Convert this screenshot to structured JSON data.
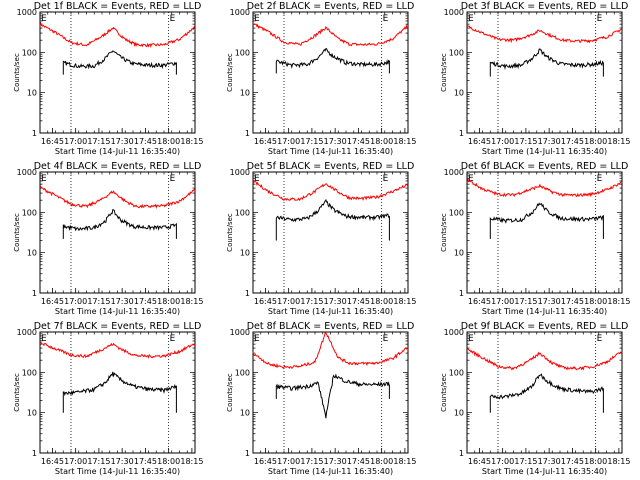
{
  "figure": {
    "xlabel": "Start Time (14-Jul-11 16:35:40)",
    "ylabel": "Counts/sec",
    "x_tick_labels": [
      "16:45",
      "17:00",
      "17:15",
      "17:30",
      "17:45",
      "18:00",
      "18:15"
    ],
    "y_tick_labels": [
      "1",
      "10",
      "100",
      "1000"
    ],
    "corner_mark": "E",
    "colors": {
      "events": "#000000",
      "lld": "#ff0000",
      "axes": "#000000"
    }
  },
  "chart_data": [
    {
      "type": "line",
      "title": "Det 1f BLACK = Events, RED = LLD",
      "xlim_minutes": [
        0,
        100
      ],
      "ylim": [
        1,
        1000
      ],
      "yscale": "log",
      "dotted_vlines_minutes": [
        20,
        83
      ],
      "lld": {
        "x": [
          0,
          10,
          20,
          30,
          40,
          47,
          55,
          62,
          70,
          80,
          90,
          100
        ],
        "y": [
          500,
          310,
          175,
          150,
          250,
          400,
          210,
          155,
          150,
          155,
          210,
          430
        ]
      },
      "events": {
        "start": 15,
        "end": 88,
        "edge_low": 28,
        "x": [
          15,
          25,
          35,
          42,
          47,
          52,
          60,
          70,
          80,
          88
        ],
        "y": [
          55,
          45,
          46,
          70,
          110,
          75,
          52,
          48,
          48,
          55
        ]
      }
    },
    {
      "type": "line",
      "title": "Det 2f BLACK = Events, RED = LLD",
      "xlim_minutes": [
        0,
        100
      ],
      "ylim": [
        1,
        1000
      ],
      "yscale": "log",
      "dotted_vlines_minutes": [
        20,
        83
      ],
      "lld": {
        "x": [
          0,
          10,
          20,
          30,
          40,
          47,
          55,
          62,
          70,
          80,
          90,
          100
        ],
        "y": [
          520,
          320,
          180,
          155,
          260,
          410,
          215,
          160,
          155,
          160,
          215,
          450
        ]
      },
      "events": {
        "start": 15,
        "end": 88,
        "edge_low": 30,
        "x": [
          15,
          25,
          35,
          42,
          47,
          52,
          60,
          70,
          80,
          88
        ],
        "y": [
          60,
          48,
          50,
          75,
          115,
          80,
          55,
          50,
          50,
          58
        ]
      }
    },
    {
      "type": "line",
      "title": "Det 3f BLACK = Events, RED = LLD",
      "xlim_minutes": [
        0,
        100
      ],
      "ylim": [
        1,
        1000
      ],
      "yscale": "log",
      "dotted_vlines_minutes": [
        20,
        83
      ],
      "lld": {
        "x": [
          0,
          10,
          20,
          30,
          40,
          47,
          55,
          62,
          70,
          80,
          90,
          100
        ],
        "y": [
          450,
          300,
          210,
          200,
          260,
          350,
          250,
          200,
          190,
          195,
          240,
          380
        ]
      },
      "events": {
        "start": 15,
        "end": 88,
        "edge_low": 25,
        "x": [
          15,
          25,
          35,
          42,
          47,
          52,
          60,
          70,
          80,
          88
        ],
        "y": [
          55,
          45,
          48,
          70,
          115,
          75,
          52,
          48,
          50,
          55
        ]
      }
    },
    {
      "type": "line",
      "title": "Det 4f BLACK = Events, RED = LLD",
      "xlim_minutes": [
        0,
        100
      ],
      "ylim": [
        1,
        1000
      ],
      "yscale": "log",
      "dotted_vlines_minutes": [
        20,
        83
      ],
      "lld": {
        "x": [
          0,
          10,
          20,
          30,
          40,
          47,
          55,
          62,
          70,
          80,
          90,
          100
        ],
        "y": [
          420,
          260,
          160,
          140,
          210,
          330,
          190,
          140,
          140,
          145,
          190,
          360
        ]
      },
      "events": {
        "start": 15,
        "end": 88,
        "edge_low": 22,
        "x": [
          15,
          25,
          35,
          42,
          47,
          52,
          60,
          70,
          80,
          88
        ],
        "y": [
          45,
          38,
          42,
          60,
          110,
          65,
          45,
          42,
          42,
          48
        ]
      }
    },
    {
      "type": "line",
      "title": "Det 5f BLACK = Events, RED = LLD",
      "xlim_minutes": [
        0,
        100
      ],
      "ylim": [
        1,
        1000
      ],
      "yscale": "log",
      "dotted_vlines_minutes": [
        20,
        83
      ],
      "lld": {
        "x": [
          0,
          10,
          20,
          30,
          40,
          47,
          55,
          62,
          70,
          80,
          90,
          100
        ],
        "y": [
          600,
          330,
          215,
          210,
          330,
          520,
          320,
          230,
          220,
          240,
          330,
          480
        ]
      },
      "events": {
        "start": 15,
        "end": 88,
        "edge_low": 20,
        "x": [
          15,
          25,
          35,
          42,
          47,
          52,
          60,
          70,
          80,
          88
        ],
        "y": [
          75,
          65,
          70,
          110,
          185,
          115,
          80,
          75,
          75,
          85
        ]
      }
    },
    {
      "type": "line",
      "title": "Det 6f BLACK = Events, RED = LLD",
      "xlim_minutes": [
        0,
        100
      ],
      "ylim": [
        1,
        1000
      ],
      "yscale": "log",
      "dotted_vlines_minutes": [
        20,
        83
      ],
      "lld": {
        "x": [
          0,
          10,
          20,
          30,
          40,
          47,
          55,
          62,
          70,
          80,
          90,
          100
        ],
        "y": [
          650,
          380,
          280,
          270,
          360,
          450,
          320,
          270,
          265,
          280,
          360,
          560
        ]
      },
      "events": {
        "start": 15,
        "end": 88,
        "edge_low": 22,
        "x": [
          15,
          25,
          35,
          42,
          47,
          52,
          60,
          70,
          80,
          88
        ],
        "y": [
          70,
          62,
          66,
          100,
          170,
          105,
          72,
          68,
          68,
          75
        ]
      }
    },
    {
      "type": "line",
      "title": "Det 7f BLACK = Events, RED = LLD",
      "xlim_minutes": [
        0,
        100
      ],
      "ylim": [
        1,
        1000
      ],
      "yscale": "log",
      "dotted_vlines_minutes": [
        20,
        83
      ],
      "lld": {
        "x": [
          0,
          10,
          20,
          30,
          40,
          47,
          55,
          62,
          70,
          80,
          90,
          100
        ],
        "y": [
          550,
          380,
          270,
          250,
          370,
          500,
          330,
          260,
          250,
          255,
          330,
          520
        ]
      },
      "events": {
        "start": 15,
        "end": 88,
        "edge_low": 10,
        "x": [
          15,
          25,
          35,
          42,
          47,
          52,
          60,
          70,
          80,
          88
        ],
        "y": [
          30,
          32,
          38,
          55,
          95,
          65,
          45,
          38,
          36,
          45
        ]
      }
    },
    {
      "type": "line",
      "title": "Det 8f BLACK = Events, RED = LLD",
      "xlim_minutes": [
        0,
        100
      ],
      "ylim": [
        1,
        1000
      ],
      "yscale": "log",
      "dotted_vlines_minutes": [
        20,
        83
      ],
      "lld": {
        "x": [
          0,
          10,
          20,
          30,
          40,
          47,
          55,
          62,
          70,
          80,
          90,
          100
        ],
        "y": [
          300,
          160,
          135,
          140,
          180,
          1000,
          230,
          170,
          165,
          170,
          220,
          420
        ]
      },
      "events": {
        "start": 15,
        "end": 88,
        "edge_low": 22,
        "x": [
          15,
          25,
          35,
          42,
          47,
          52,
          60,
          70,
          80,
          88
        ],
        "y": [
          45,
          40,
          45,
          55,
          8,
          85,
          60,
          50,
          50,
          52
        ]
      }
    },
    {
      "type": "line",
      "title": "Det 9f BLACK = Events, RED = LLD",
      "xlim_minutes": [
        0,
        100
      ],
      "ylim": [
        1,
        1000
      ],
      "yscale": "log",
      "dotted_vlines_minutes": [
        20,
        83
      ],
      "lld": {
        "x": [
          0,
          10,
          20,
          30,
          40,
          47,
          55,
          62,
          70,
          80,
          90,
          100
        ],
        "y": [
          380,
          230,
          140,
          125,
          190,
          300,
          170,
          130,
          125,
          135,
          180,
          330
        ]
      },
      "events": {
        "start": 15,
        "end": 88,
        "edge_low": 10,
        "x": [
          15,
          25,
          35,
          42,
          47,
          52,
          60,
          70,
          80,
          88
        ],
        "y": [
          25,
          25,
          30,
          45,
          90,
          60,
          40,
          35,
          33,
          40
        ]
      }
    }
  ]
}
